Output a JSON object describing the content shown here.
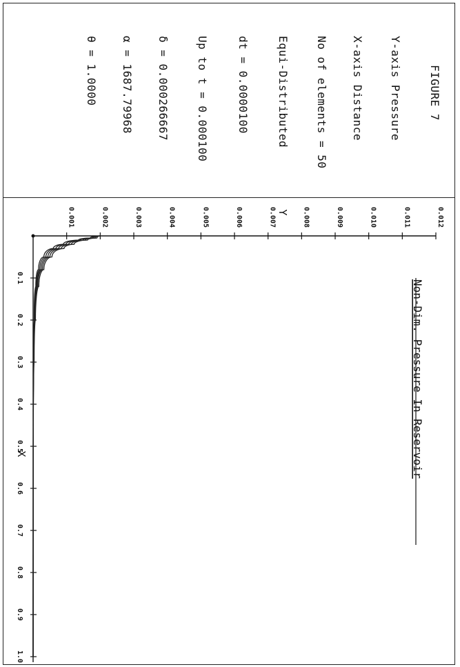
{
  "info_panel": {
    "lines": [
      "FIGURE  7",
      "Y-axis  Pressure",
      "X-axis  Distance",
      "No of elements = 50",
      "Equi-Distributed",
      "dt = 0.0000100",
      "Up to t = 0.000100",
      "δ = 0.000266667",
      "α = 1687.79968",
      "θ = 1.0000"
    ]
  },
  "chart_data": {
    "type": "line",
    "title": "Non-Dim. Pressure In Reservoir",
    "xlabel": "X",
    "ylabel": "Y",
    "xlim": [
      0,
      1.0
    ],
    "ylim": [
      0,
      0.012
    ],
    "x_ticks": [
      0.1,
      0.2,
      0.3,
      0.4,
      0.5,
      0.6,
      0.7,
      0.8,
      0.9,
      1.0
    ],
    "x_tick_labels": [
      "0.1",
      "0.2",
      "0.3",
      "0.4",
      "0.5",
      "0.6",
      "0.7",
      "0.8",
      "0.9",
      "1.0"
    ],
    "y_ticks": [
      0.001,
      0.002,
      0.003,
      0.004,
      0.005,
      0.006,
      0.007,
      0.008,
      0.009,
      0.01,
      0.011,
      0.012
    ],
    "y_tick_labels": [
      "0.001",
      "0.002",
      "0.003",
      "0.004",
      "0.005",
      "0.006",
      "0.007",
      "0.008",
      "0.009",
      "0.010",
      "0.011",
      "0.012"
    ],
    "orientation": "rotated-90",
    "grid": false,
    "series": [
      {
        "x": [
          0,
          0.005,
          0.01,
          0.02,
          0.03,
          0.05,
          0.08,
          0.12,
          0.2,
          0.3,
          0.5,
          1.0
        ],
        "values": [
          0.002,
          0.0017,
          0.00135,
          0.0009,
          0.0006,
          0.00032,
          0.00016,
          8e-05,
          3e-05,
          1e-05,
          2e-06,
          0
        ]
      },
      {
        "x": [
          0,
          0.005,
          0.01,
          0.02,
          0.03,
          0.05,
          0.08,
          0.12,
          0.2,
          0.3,
          0.5,
          1.0
        ],
        "values": [
          0.002,
          0.00175,
          0.0014,
          0.00098,
          0.00068,
          0.00038,
          0.0002,
          0.0001,
          4e-05,
          1.5e-05,
          3e-06,
          0
        ]
      },
      {
        "x": [
          0,
          0.005,
          0.01,
          0.02,
          0.03,
          0.05,
          0.08,
          0.12,
          0.2,
          0.3,
          0.5,
          1.0
        ],
        "values": [
          0.002,
          0.0018,
          0.00148,
          0.00106,
          0.00076,
          0.00044,
          0.00024,
          0.00012,
          5e-05,
          2e-05,
          4e-06,
          0
        ]
      },
      {
        "x": [
          0,
          0.005,
          0.01,
          0.02,
          0.03,
          0.05,
          0.08,
          0.12,
          0.2,
          0.3,
          0.5,
          1.0
        ],
        "values": [
          0.002,
          0.00185,
          0.00155,
          0.00114,
          0.00084,
          0.0005,
          0.00028,
          0.00014,
          6e-05,
          2.5e-05,
          5e-06,
          0
        ]
      },
      {
        "x": [
          0,
          0.005,
          0.01,
          0.02,
          0.03,
          0.05,
          0.08,
          0.12,
          0.2,
          0.3,
          0.5,
          1.0
        ],
        "values": [
          0.002,
          0.0019,
          0.00162,
          0.00122,
          0.00092,
          0.00056,
          0.00032,
          0.00017,
          7e-05,
          3e-05,
          6e-06,
          0
        ]
      }
    ]
  }
}
